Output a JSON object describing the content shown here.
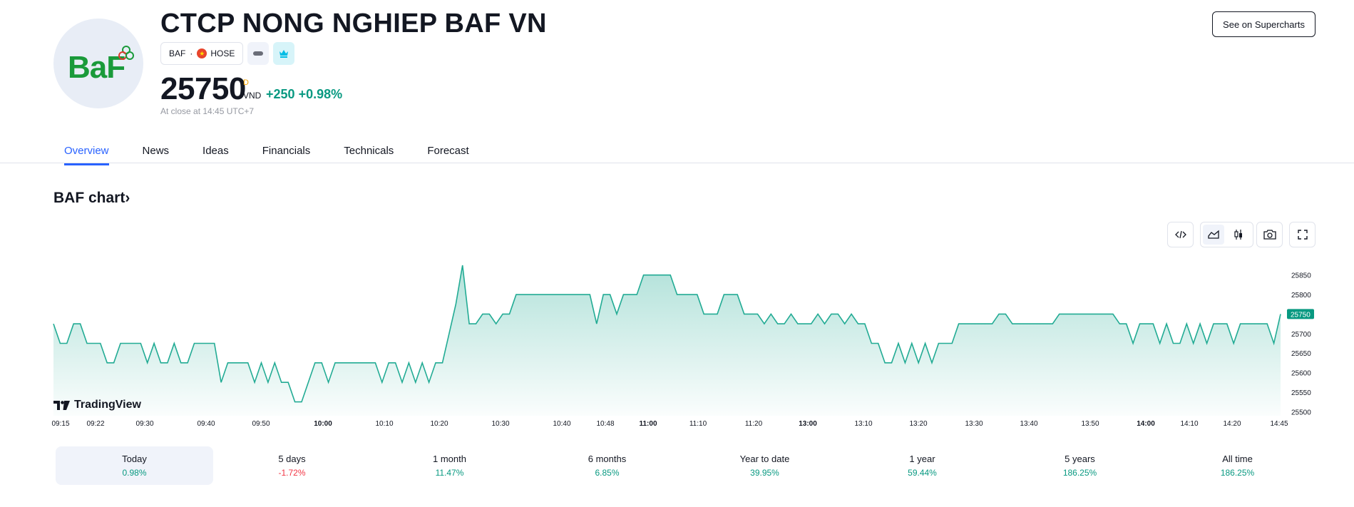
{
  "header": {
    "logo_text": "BaF",
    "title": "CTCP NONG NGHIEP BAF VN",
    "ticker": "BAF",
    "exchange": "HOSE",
    "price": "25750",
    "price_flag": "D",
    "currency": "VND",
    "change": "+250",
    "change_pct": "+0.98%",
    "close_note": "At close at 14:45 UTC+7",
    "supercharts_label": "See on Supercharts"
  },
  "tabs": [
    {
      "label": "Overview",
      "active": true
    },
    {
      "label": "News"
    },
    {
      "label": "Ideas"
    },
    {
      "label": "Financials"
    },
    {
      "label": "Technicals"
    },
    {
      "label": "Forecast"
    }
  ],
  "chart_section": {
    "title": "BAF chart",
    "brand": "TradingView"
  },
  "chart_data": {
    "type": "area",
    "series": [
      {
        "values": [
          25725,
          25675,
          25675,
          25725,
          25725,
          25675,
          25675,
          25675,
          25625,
          25625,
          25675,
          25675,
          25675,
          25675,
          25625,
          25675,
          25625,
          25625,
          25675,
          25625,
          25625,
          25675,
          25675,
          25675,
          25675,
          25575,
          25625,
          25625,
          25625,
          25625,
          25575,
          25625,
          25575,
          25625,
          25575,
          25575,
          25525,
          25525,
          25575,
          25625,
          25625,
          25575,
          25625,
          25625,
          25625,
          25625,
          25625,
          25625,
          25625,
          25575,
          25625,
          25625,
          25575,
          25625,
          25575,
          25625,
          25575,
          25625,
          25625,
          25700,
          25775,
          25875,
          25725,
          25725,
          25750,
          25750,
          25725,
          25750,
          25750,
          25800,
          25800,
          25800,
          25800,
          25800,
          25800,
          25800,
          25800,
          25800,
          25800,
          25800,
          25800,
          25725,
          25800,
          25800,
          25750,
          25800,
          25800,
          25800,
          25850,
          25850,
          25850,
          25850,
          25850,
          25800,
          25800,
          25800,
          25800,
          25750,
          25750,
          25750,
          25800,
          25800,
          25800,
          25750,
          25750,
          25750,
          25725,
          25750,
          25725,
          25725,
          25750,
          25725,
          25725,
          25725,
          25750,
          25725,
          25750,
          25750,
          25725,
          25750,
          25725,
          25725,
          25675,
          25675,
          25625,
          25625,
          25675,
          25625,
          25675,
          25625,
          25675,
          25625,
          25675,
          25675,
          25675,
          25725,
          25725,
          25725,
          25725,
          25725,
          25725,
          25750,
          25750,
          25725,
          25725,
          25725,
          25725,
          25725,
          25725,
          25725,
          25750,
          25750,
          25750,
          25750,
          25750,
          25750,
          25750,
          25750,
          25750,
          25725,
          25725,
          25675,
          25725,
          25725,
          25725,
          25675,
          25725,
          25675,
          25675,
          25725,
          25675,
          25725,
          25675,
          25725,
          25725,
          25725,
          25675,
          25725,
          25725,
          25725,
          25725,
          25725,
          25675,
          25750
        ]
      }
    ],
    "x_ticks": [
      {
        "label": "09:15",
        "bold": false
      },
      {
        "label": "09:22",
        "bold": false
      },
      {
        "label": "09:30",
        "bold": false
      },
      {
        "label": "09:40",
        "bold": false
      },
      {
        "label": "09:50",
        "bold": false
      },
      {
        "label": "10:00",
        "bold": true
      },
      {
        "label": "10:10",
        "bold": false
      },
      {
        "label": "10:20",
        "bold": false
      },
      {
        "label": "10:30",
        "bold": false
      },
      {
        "label": "10:40",
        "bold": false
      },
      {
        "label": "10:48",
        "bold": false
      },
      {
        "label": "11:00",
        "bold": true
      },
      {
        "label": "11:10",
        "bold": false
      },
      {
        "label": "11:20",
        "bold": false
      },
      {
        "label": "13:00",
        "bold": true
      },
      {
        "label": "13:10",
        "bold": false
      },
      {
        "label": "13:20",
        "bold": false
      },
      {
        "label": "13:30",
        "bold": false
      },
      {
        "label": "13:40",
        "bold": false
      },
      {
        "label": "13:50",
        "bold": false
      },
      {
        "label": "14:00",
        "bold": true
      },
      {
        "label": "14:10",
        "bold": false
      },
      {
        "label": "14:20",
        "bold": false
      },
      {
        "label": "14:45",
        "bold": false
      }
    ],
    "y_ticks": [
      25500,
      25550,
      25600,
      25650,
      25700,
      25750,
      25800,
      25850
    ],
    "ylim": [
      25495,
      25875
    ],
    "last_value": 25750,
    "colors": {
      "line": "#22ab94",
      "area": "#22ab94",
      "last_label": "#089981"
    }
  },
  "periods": [
    {
      "label": "Today",
      "value": "0.98%",
      "sign": "pos",
      "active": true
    },
    {
      "label": "5 days",
      "value": "-1.72%",
      "sign": "neg"
    },
    {
      "label": "1 month",
      "value": "11.47%",
      "sign": "pos"
    },
    {
      "label": "6 months",
      "value": "6.85%",
      "sign": "pos"
    },
    {
      "label": "Year to date",
      "value": "39.95%",
      "sign": "pos"
    },
    {
      "label": "1 year",
      "value": "59.44%",
      "sign": "pos"
    },
    {
      "label": "5 years",
      "value": "186.25%",
      "sign": "pos"
    },
    {
      "label": "All time",
      "value": "186.25%",
      "sign": "pos"
    }
  ]
}
